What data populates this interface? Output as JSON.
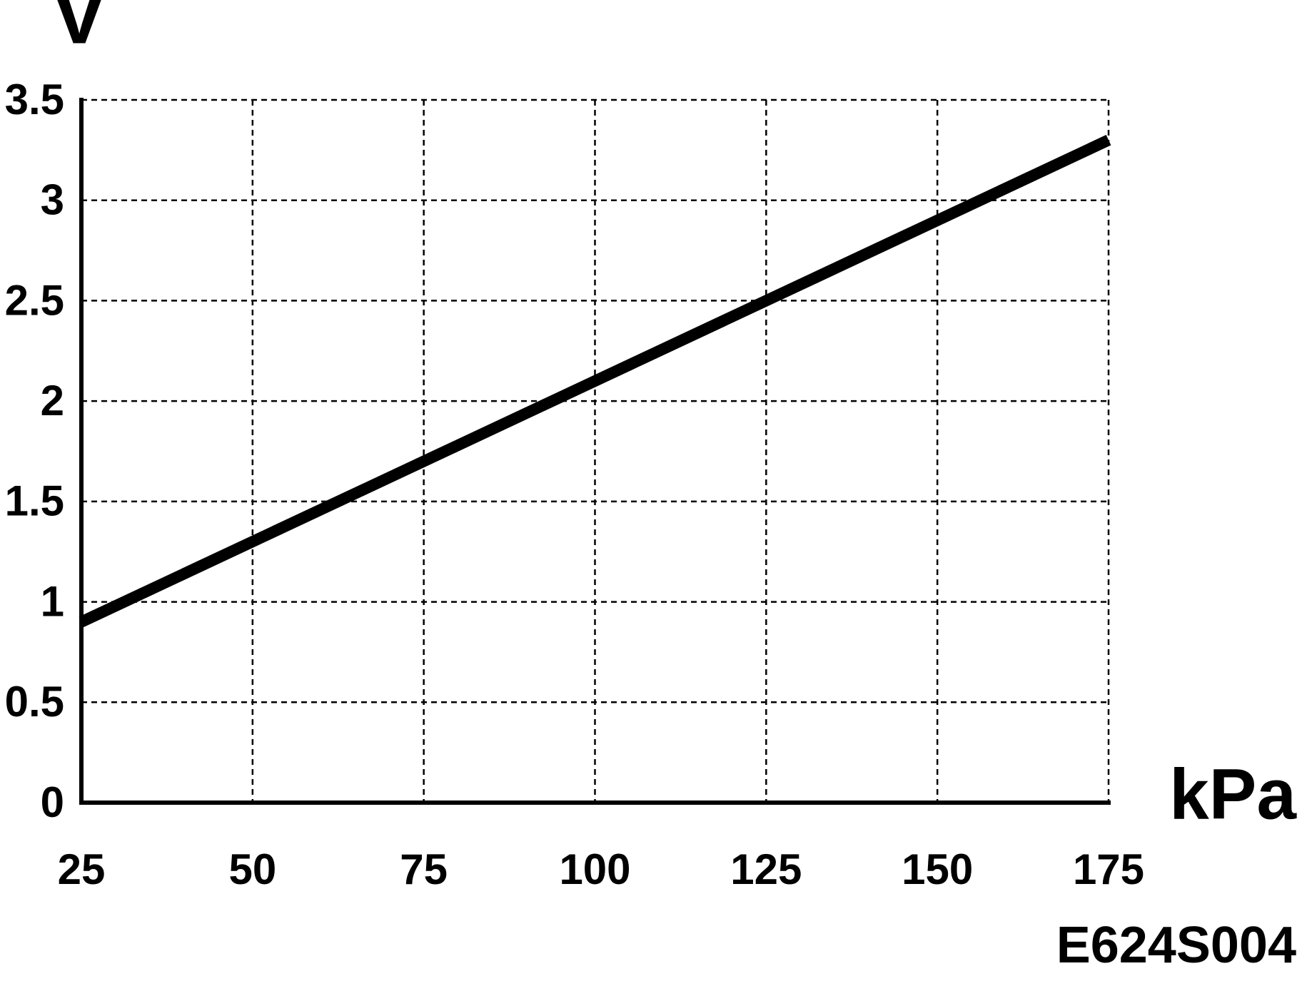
{
  "chart_data": {
    "type": "line",
    "y_label": "V",
    "x_label": "kPa",
    "annotation": "E624S004",
    "x": [
      25,
      175
    ],
    "series": [
      {
        "color": "#000000",
        "values": [
          0.9,
          3.3
        ]
      }
    ],
    "xlim": [
      25,
      175
    ],
    "xticks": [
      25,
      50,
      75,
      100,
      125,
      150,
      175
    ],
    "ylim": [
      0,
      3.5
    ],
    "yticks": [
      0,
      0.5,
      1,
      1.5,
      2,
      2.5,
      3,
      3.5
    ],
    "grid": true
  }
}
